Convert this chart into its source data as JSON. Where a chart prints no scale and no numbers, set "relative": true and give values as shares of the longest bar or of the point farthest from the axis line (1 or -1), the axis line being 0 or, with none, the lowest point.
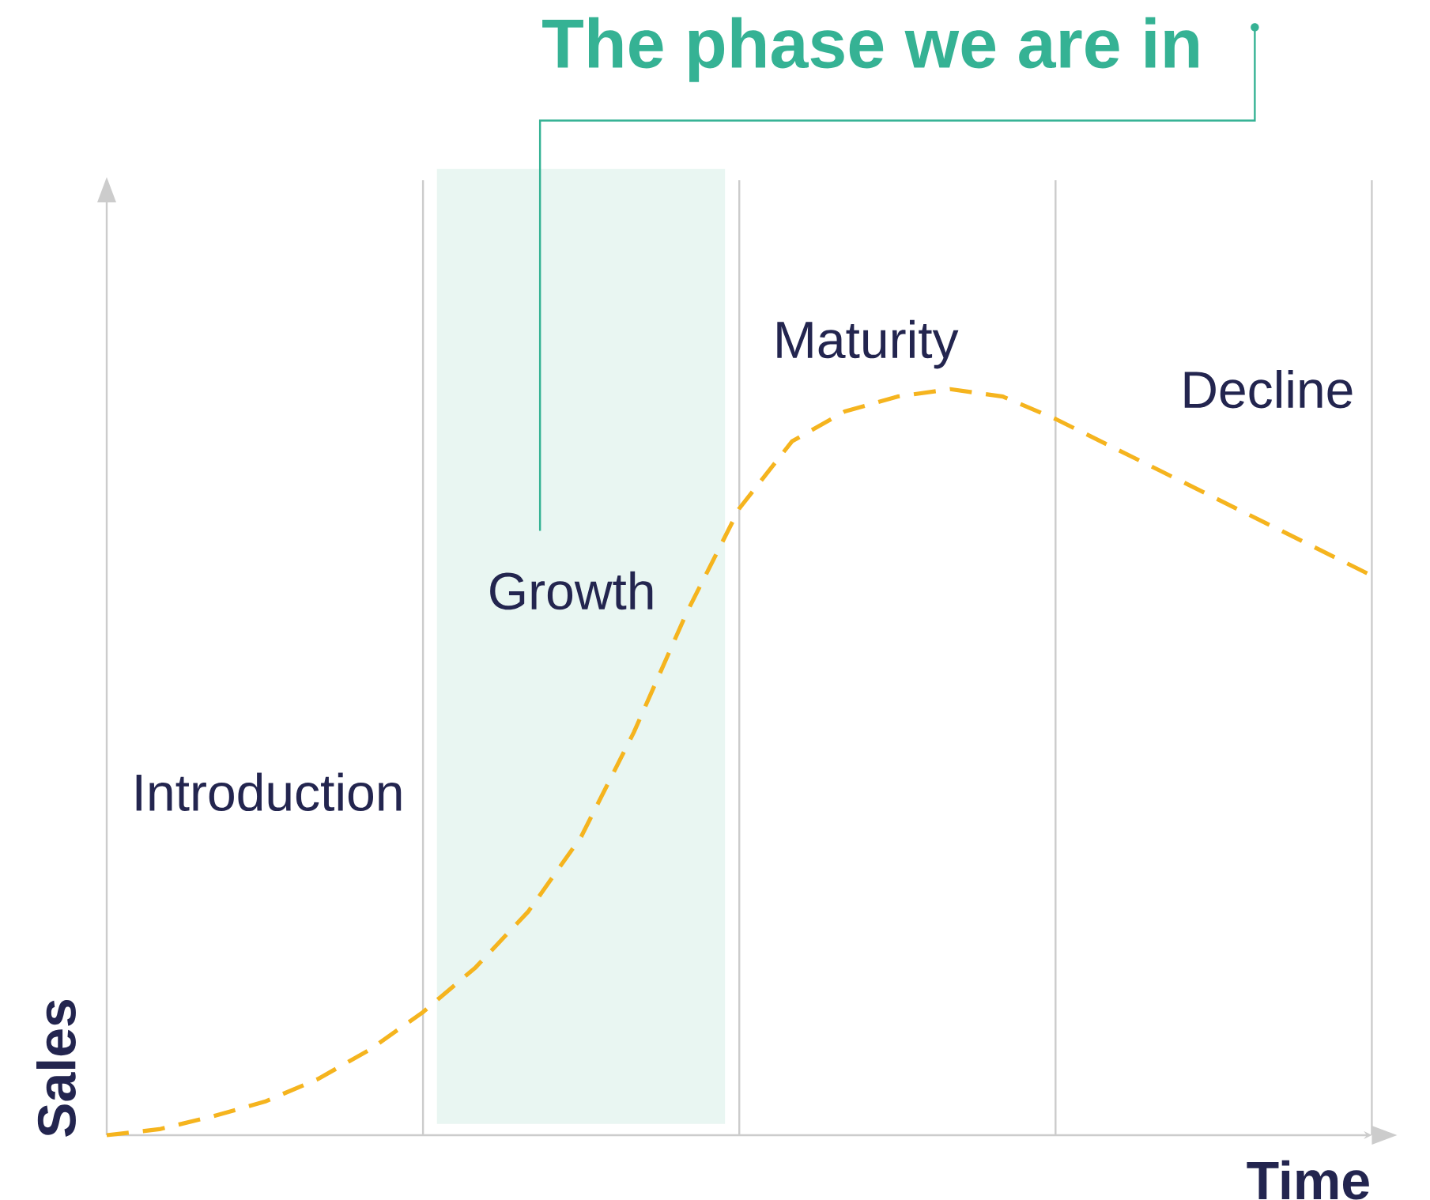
{
  "chart_data": {
    "type": "line",
    "title": "The phase we are in",
    "xlabel": "Time",
    "ylabel": "Sales",
    "relative": true,
    "categories": [
      null,
      null,
      null,
      null,
      null,
      null,
      null,
      null,
      null,
      null,
      null,
      null,
      null,
      null,
      null,
      null,
      null,
      null,
      null,
      null,
      null,
      null,
      null,
      null,
      null
    ],
    "series": [
      {
        "color": "#f5b41e",
        "line_style": "dashed",
        "values": [
          0,
          0.008,
          0.025,
          0.045,
          0.075,
          0.115,
          0.165,
          0.225,
          0.3,
          0.4,
          0.54,
          0.7,
          0.84,
          0.93,
          0.97,
          0.99,
          1.0,
          0.99,
          0.96,
          0.925,
          0.89,
          0.855,
          0.82,
          0.785,
          0.75
        ]
      }
    ],
    "grid": "x",
    "annotations": [
      "Introduction",
      "Growth",
      "Maturity",
      "Decline"
    ]
  }
}
